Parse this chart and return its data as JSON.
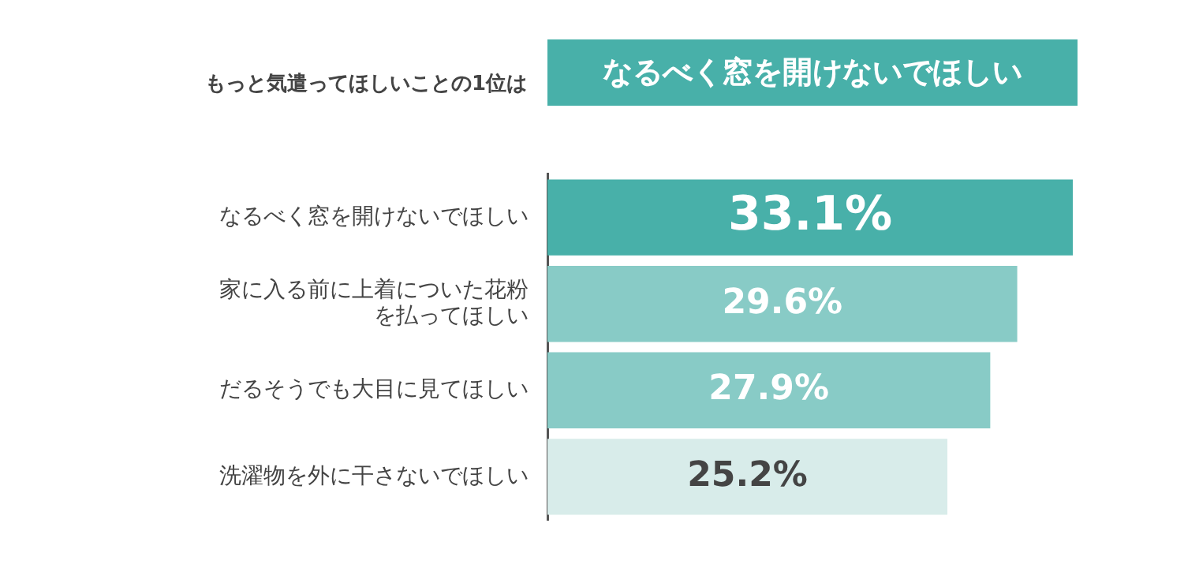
{
  "chart_data": {
    "type": "bar",
    "orientation": "horizontal",
    "title": "もっと気遣ってほしいことの1位は",
    "subtitle": "なるべく窓を開けないでほしい",
    "categories": [
      "なるべく窓を開けないでほしい",
      "家に入る前に上着についた花粉を払ってほしい",
      "だるそうでも大目に見てほしい",
      "洗濯物を外に干さないでほしい"
    ],
    "values": [
      33.1,
      29.6,
      27.9,
      25.2
    ],
    "colors": [
      "#48b0a9",
      "#88cbc6",
      "#88cbc6",
      "#d8ecea"
    ],
    "value_labels": [
      "33.1%",
      "29.6%",
      "27.9%",
      "25.2%"
    ],
    "grid": false,
    "legend": false,
    "tick_labels": "y"
  }
}
